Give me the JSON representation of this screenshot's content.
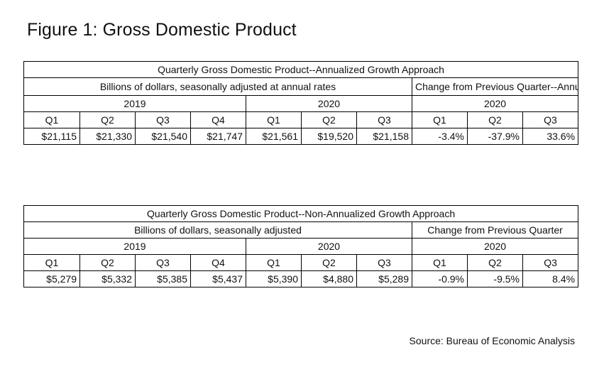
{
  "title": "Figure 1: Gross Domestic Product",
  "source": "Source: Bureau of Economic Analysis",
  "chart_data": [
    {
      "type": "table",
      "title": "Quarterly Gross Domestic Product--Annualized Growth Approach",
      "level_header": "Billions of dollars, seasonally adjusted at annual rates",
      "change_header": "Change from Previous Quarter--Annualized",
      "years": [
        "2019",
        "2020",
        "2020"
      ],
      "quarters": [
        "Q1",
        "Q2",
        "Q3",
        "Q4",
        "Q1",
        "Q2",
        "Q3",
        "Q1",
        "Q2",
        "Q3"
      ],
      "values": [
        "$21,115",
        "$21,330",
        "$21,540",
        "$21,747",
        "$21,561",
        "$19,520",
        "$21,158",
        "-3.4%",
        "-37.9%",
        "33.6%"
      ]
    },
    {
      "type": "table",
      "title": "Quarterly Gross Domestic Product--Non-Annualized Growth Approach",
      "level_header": "Billions of dollars, seasonally adjusted",
      "change_header": "Change from Previous Quarter",
      "years": [
        "2019",
        "2020",
        "2020"
      ],
      "quarters": [
        "Q1",
        "Q2",
        "Q3",
        "Q4",
        "Q1",
        "Q2",
        "Q3",
        "Q1",
        "Q2",
        "Q3"
      ],
      "values": [
        "$5,279",
        "$5,332",
        "$5,385",
        "$5,437",
        "$5,390",
        "$4,880",
        "$5,289",
        "-0.9%",
        "-9.5%",
        "8.4%"
      ]
    }
  ]
}
